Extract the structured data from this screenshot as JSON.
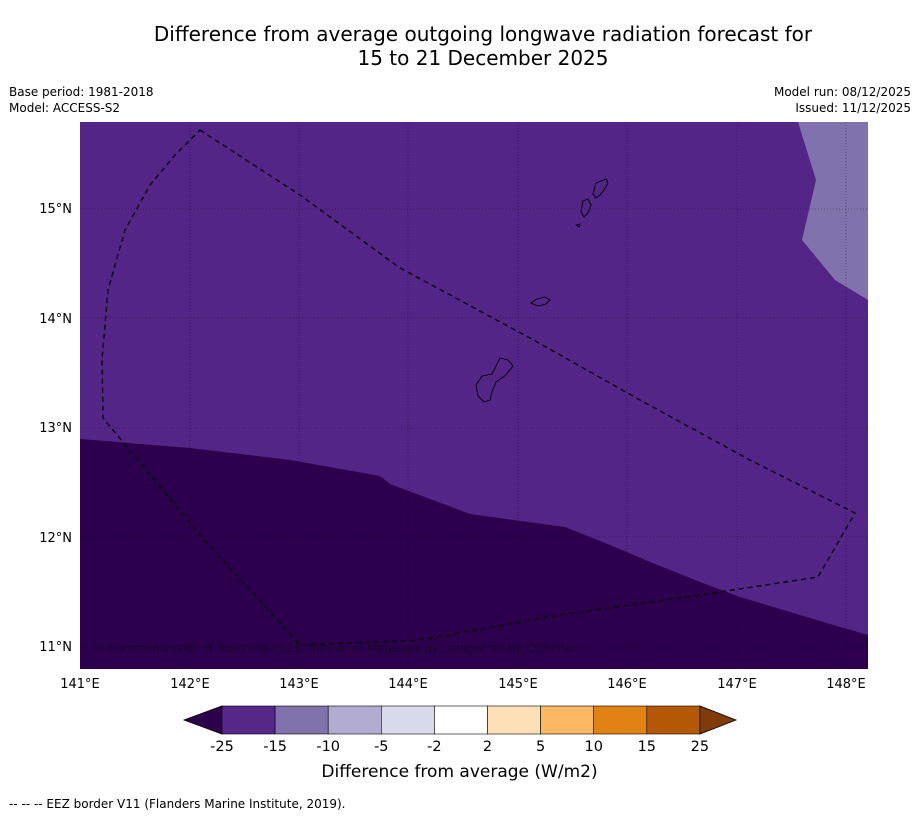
{
  "title": {
    "line1": "Difference from average outgoing longwave radiation forecast for",
    "line2": "15 to 21 December 2025"
  },
  "meta": {
    "base_period": "Base period: 1981-2018",
    "model": "Model: ACCESS-S2",
    "model_run": "Model run: 08/12/2025",
    "issued": "Issued: 11/12/2025"
  },
  "map": {
    "lon_ticks": [
      "141°E",
      "142°E",
      "143°E",
      "144°E",
      "145°E",
      "146°E",
      "147°E",
      "148°E"
    ],
    "lat_ticks": [
      "15°N",
      "14°N",
      "13°N",
      "12°N",
      "11°N"
    ],
    "copyright": "© Commonwealth of Australia 2025, Bureau of Meteorology, supported by COSPPac",
    "colors": {
      "dark_purple": "#2c004c",
      "mid_purple": "#532587",
      "light_purple": "#8072ad",
      "border": "#000000"
    }
  },
  "colorbar": {
    "title": "Difference from average (W/m2)",
    "tick_labels": [
      "-25",
      "-15",
      "-10",
      "-5",
      "-2",
      "2",
      "5",
      "10",
      "15",
      "25"
    ],
    "colors": [
      "#2d004b",
      "#542788",
      "#8073ac",
      "#b2abd2",
      "#d8daeb",
      "#ffffff",
      "#fee0b6",
      "#fdb863",
      "#e08214",
      "#b35806",
      "#7f3b08"
    ]
  },
  "legend": {
    "eez": "--  --  -- EEZ border V11 (Flanders Marine Institute, 2019)."
  }
}
